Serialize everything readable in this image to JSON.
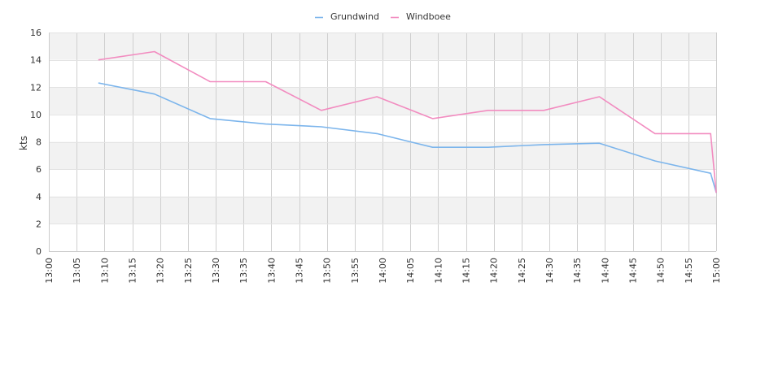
{
  "chart_data": {
    "type": "line",
    "title": "",
    "xlabel": "",
    "ylabel": "kts",
    "ylim": [
      0,
      16
    ],
    "y_ticks": [
      0,
      2,
      4,
      6,
      8,
      10,
      12,
      14,
      16
    ],
    "x_range": [
      "13:00",
      "15:00"
    ],
    "x_ticks": [
      "13:00",
      "13:05",
      "13:10",
      "13:15",
      "13:20",
      "13:25",
      "13:30",
      "13:35",
      "13:40",
      "13:45",
      "13:50",
      "13:55",
      "14:00",
      "14:05",
      "14:10",
      "14:15",
      "14:20",
      "14:25",
      "14:30",
      "14:35",
      "14:40",
      "14:45",
      "14:50",
      "14:55",
      "15:00"
    ],
    "grid": true,
    "legend_position": "top-center",
    "series": [
      {
        "name": "Grundwind",
        "color": "#7cb5ec",
        "points": [
          [
            "13:09",
            12.3
          ],
          [
            "13:19",
            11.5
          ],
          [
            "13:29",
            9.7
          ],
          [
            "13:39",
            9.3
          ],
          [
            "13:49",
            9.1
          ],
          [
            "13:59",
            8.6
          ],
          [
            "14:09",
            7.6
          ],
          [
            "14:19",
            7.6
          ],
          [
            "14:29",
            7.8
          ],
          [
            "14:39",
            7.9
          ],
          [
            "14:49",
            6.6
          ],
          [
            "14:59",
            5.7
          ],
          [
            "15:00",
            4.3
          ]
        ]
      },
      {
        "name": "Windboee",
        "color": "#f28cc0",
        "points": [
          [
            "13:09",
            14.0
          ],
          [
            "13:19",
            14.6
          ],
          [
            "13:29",
            12.4
          ],
          [
            "13:39",
            12.4
          ],
          [
            "13:49",
            10.3
          ],
          [
            "13:59",
            11.3
          ],
          [
            "14:09",
            9.7
          ],
          [
            "14:19",
            10.3
          ],
          [
            "14:29",
            10.3
          ],
          [
            "14:39",
            11.3
          ],
          [
            "14:49",
            8.6
          ],
          [
            "14:59",
            8.6
          ],
          [
            "15:00",
            4.3
          ]
        ]
      }
    ]
  }
}
